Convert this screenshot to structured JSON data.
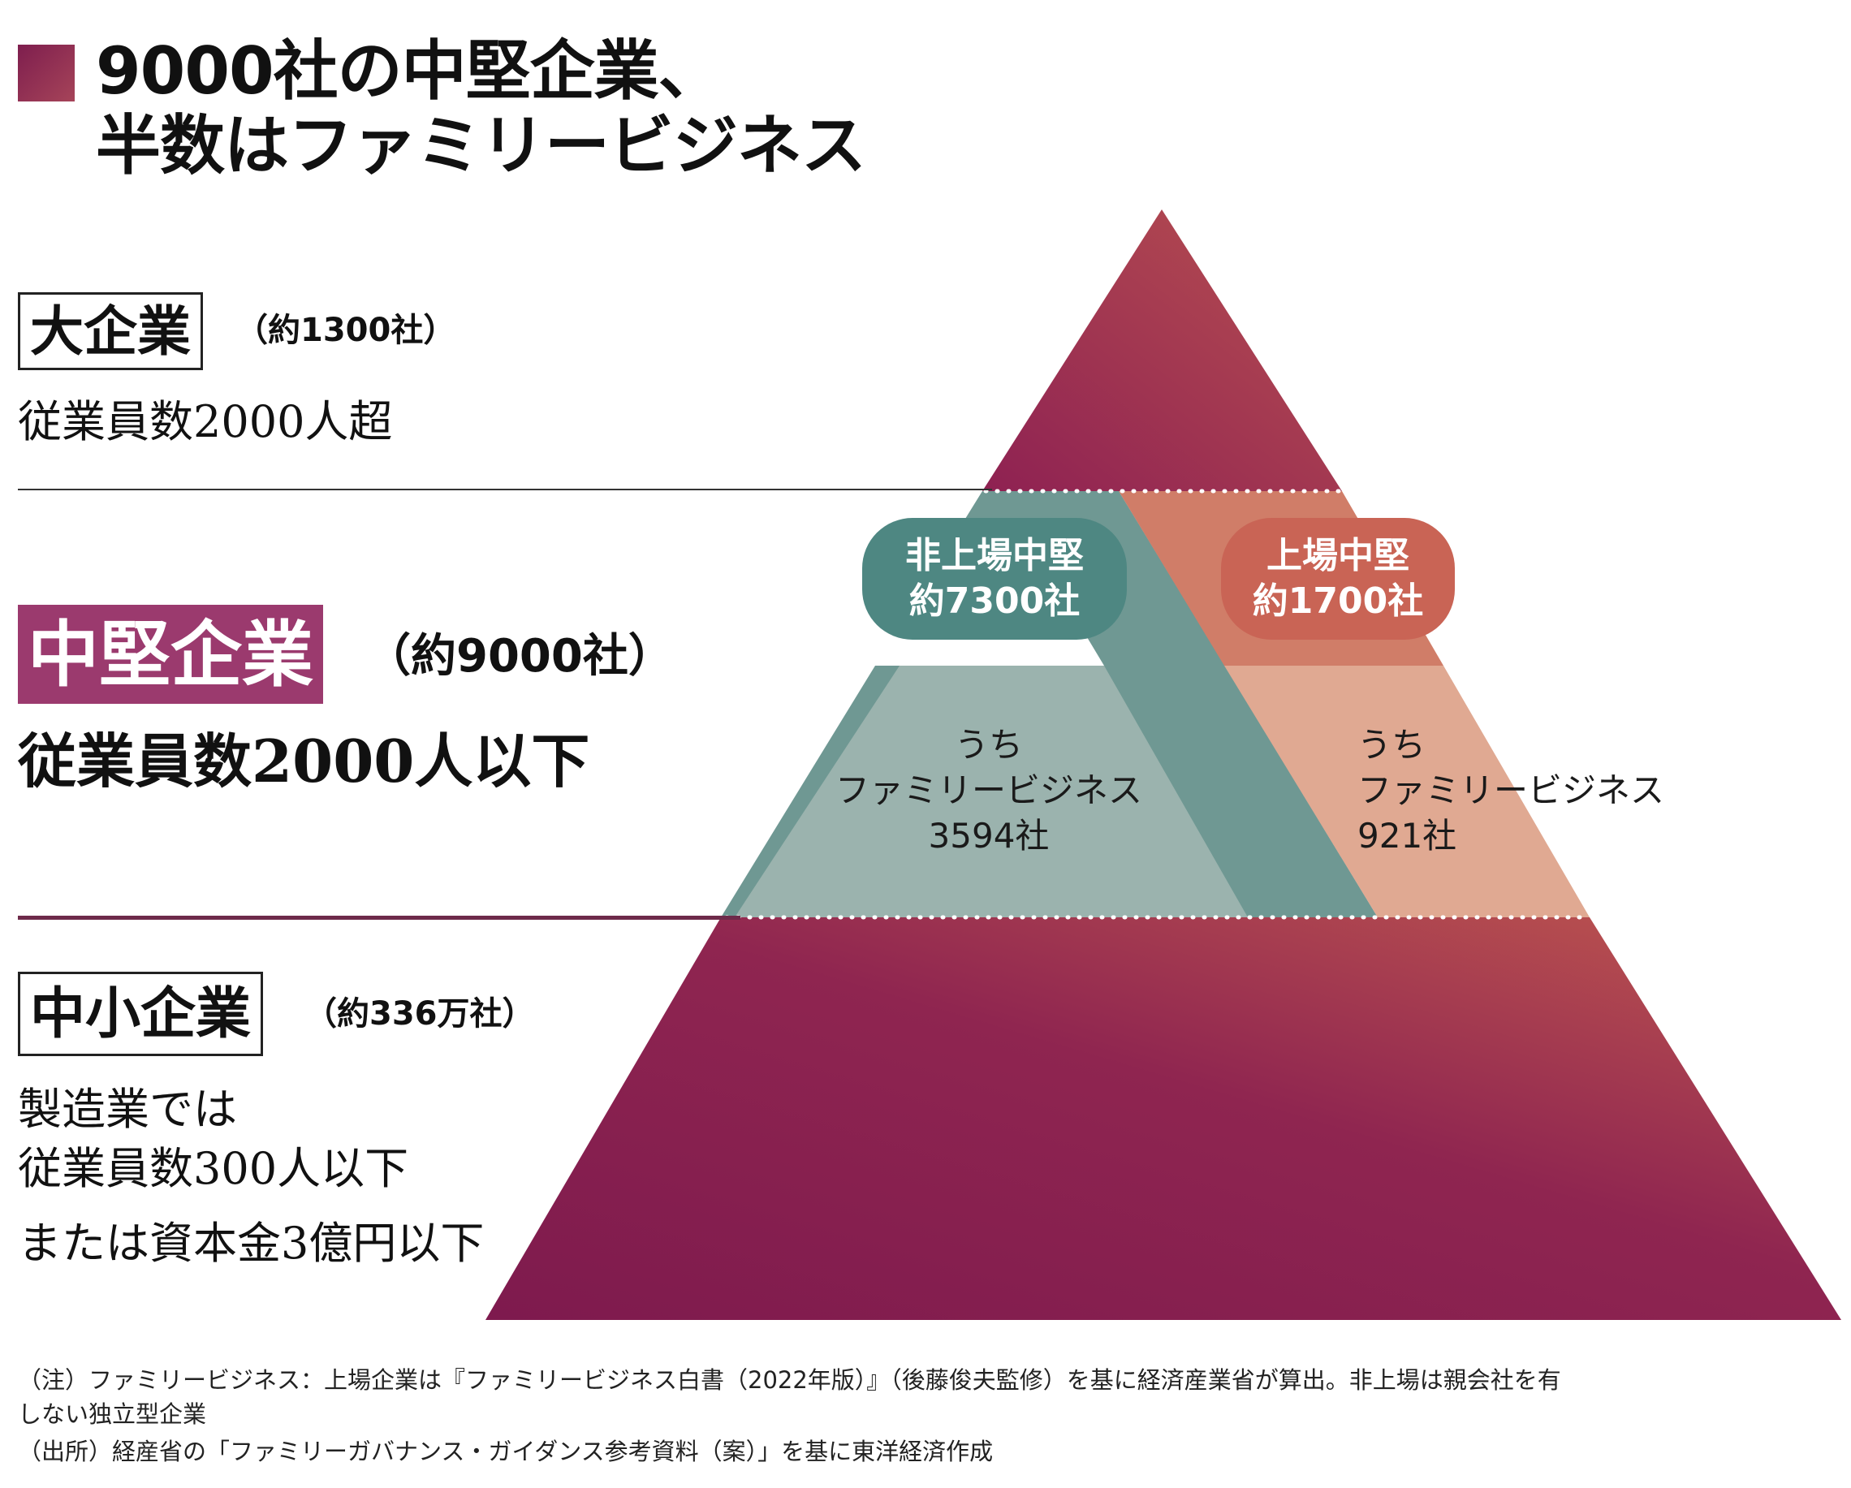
{
  "title": {
    "line1": "9000社の中堅企業、",
    "line2": "半数はファミリービジネス"
  },
  "tiers": {
    "large": {
      "name": "大企業",
      "count": "（約1300社）",
      "criteria": "従業員数2000人超"
    },
    "mid": {
      "name": "中堅企業",
      "count": "（約9000社）",
      "criteria": "従業員数2000人以下"
    },
    "small": {
      "name": "中小企業",
      "count": "（約336万社）",
      "criteria_line1": "製造業では",
      "criteria_line2": "従業員数300人以下",
      "criteria_line3": "または資本金3億円以下"
    }
  },
  "pyramid": {
    "unlisted": {
      "label_line1": "非上場中堅",
      "label_line2": "約7300社",
      "fb_line1": "うち",
      "fb_line2": "ファミリービジネス",
      "fb_line3": "3594社"
    },
    "listed": {
      "label_line1": "上場中堅",
      "label_line2": "約1700社",
      "fb_line1": "うち",
      "fb_line2": "ファミリービジネス",
      "fb_line3": "921社"
    }
  },
  "notes": {
    "line1": "（注）ファミリービジネス：上場企業は『ファミリービジネス白書（2022年版）』（後藤俊夫監修）を基に経済産業省が算出。非上場は親会社を有",
    "line2": "しない独立型企業",
    "line3": "（出所）経産省の「ファミリーガバナンス・ガイダンス参考資料（案）」を基に東洋経済作成"
  },
  "colors": {
    "wine": "#8a1f52",
    "wine_light": "#b34a4f",
    "teal_dark": "#6f9893",
    "teal_light": "#9bb3ae",
    "coral_dark": "#d07d68",
    "coral_light": "#e0a992",
    "mid_box": "#9b3a6e",
    "title_square": "#7e1e4e"
  }
}
